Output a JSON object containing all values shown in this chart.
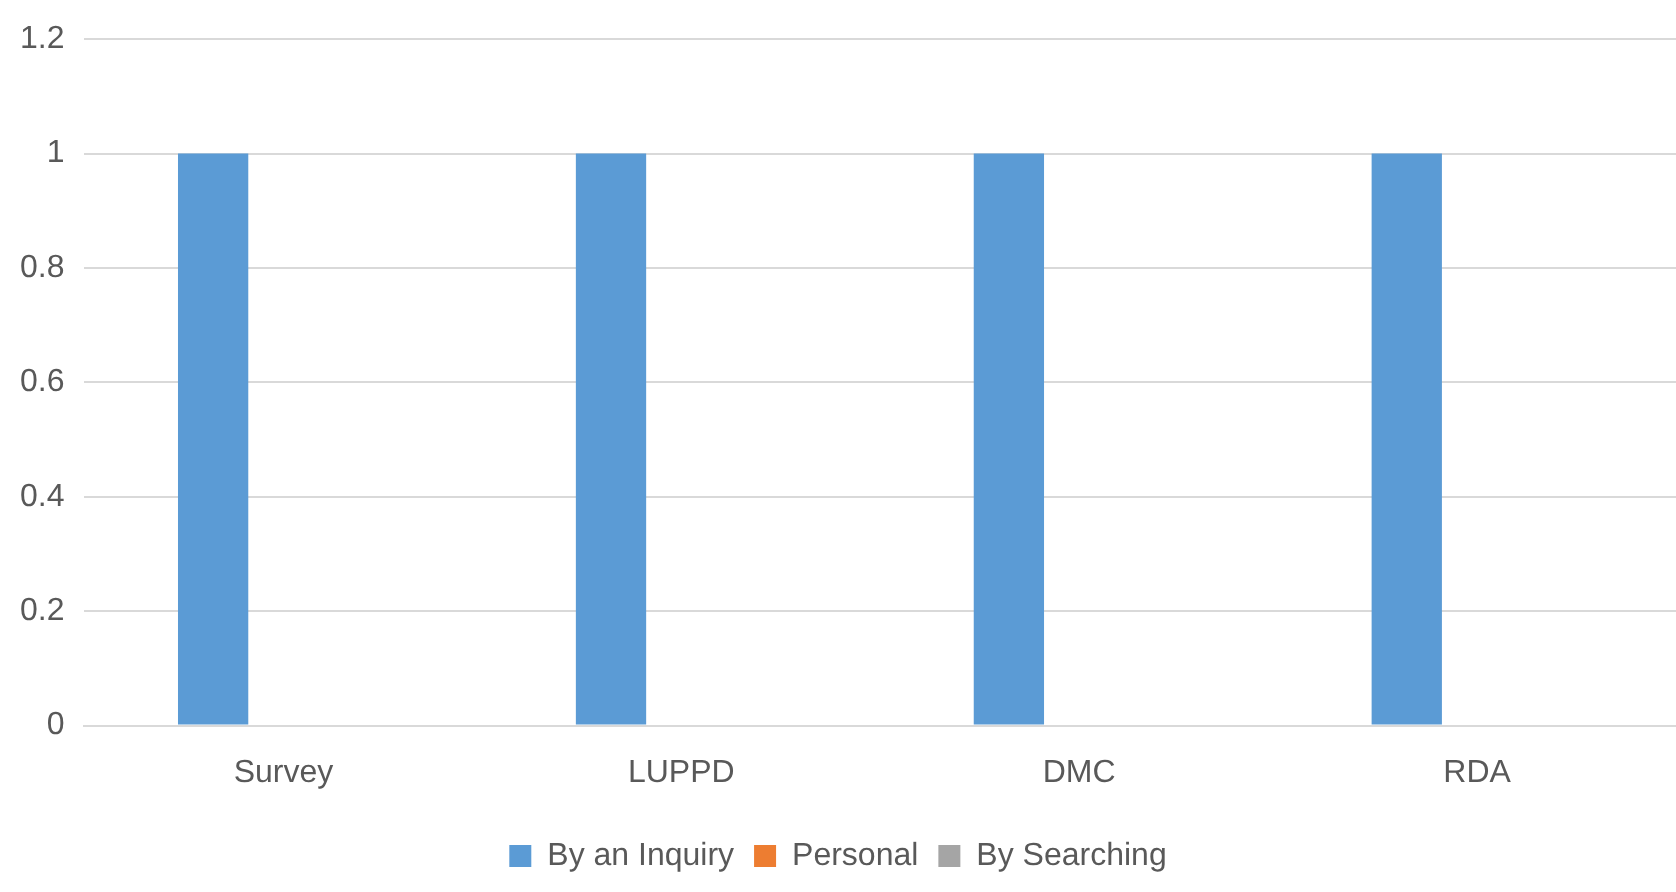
{
  "chart_data": {
    "type": "bar",
    "categories": [
      "Survey",
      "LUPPD",
      "DMC",
      "RDA"
    ],
    "series": [
      {
        "name": "By an Inquiry",
        "color": "#5b9bd5",
        "values": [
          1,
          1,
          1,
          1
        ]
      },
      {
        "name": "Personal",
        "color": "#ed7d31",
        "values": [
          0,
          0,
          0,
          0
        ]
      },
      {
        "name": "By Searching",
        "color": "#a5a5a5",
        "values": [
          0,
          0,
          0,
          0
        ]
      }
    ],
    "ylim": [
      0,
      1.2
    ],
    "yticks": [
      0,
      0.2,
      0.4,
      0.6,
      0.8,
      1,
      1.2
    ],
    "grid": "y",
    "legend": "bottom"
  }
}
